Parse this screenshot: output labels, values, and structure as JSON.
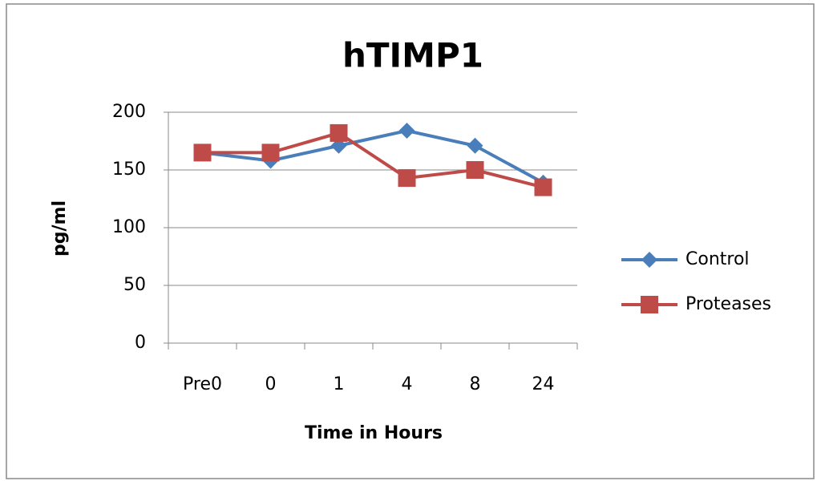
{
  "chart_data": {
    "type": "line",
    "title": "hTIMP1",
    "x_label": "Time in Hours",
    "y_label": "pg/ml",
    "categories": [
      "Pre0",
      "0",
      "1",
      "4",
      "8",
      "24"
    ],
    "series": [
      {
        "name": "Control",
        "color": "#4a7ebb",
        "marker": "diamond",
        "values": [
          165,
          158,
          171,
          184,
          171,
          139
        ]
      },
      {
        "name": "Proteases",
        "color": "#be4b48",
        "marker": "square",
        "values": [
          165,
          165,
          182,
          143,
          150,
          135
        ]
      }
    ],
    "ylim": [
      0,
      200
    ],
    "yticks": [
      0,
      50,
      100,
      150,
      200
    ],
    "grid": true,
    "legend": "right"
  }
}
